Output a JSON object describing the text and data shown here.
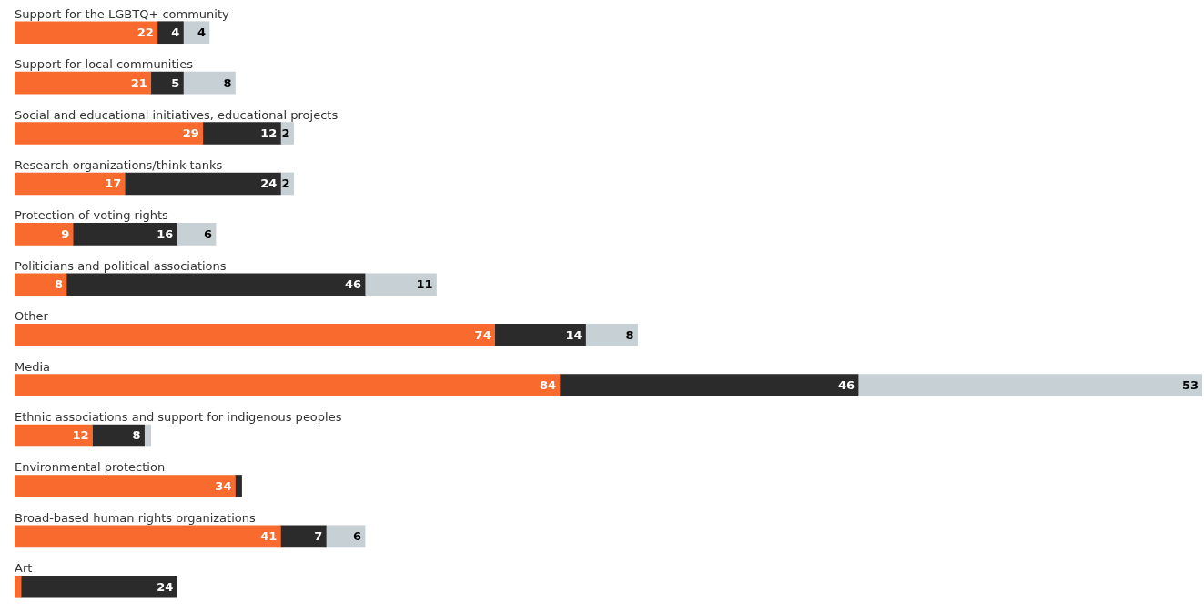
{
  "chart_data": {
    "type": "bar",
    "orientation": "horizontal",
    "stacked": true,
    "legend": false,
    "categories": [
      "Support for the LGBTQ+ community",
      "Support for local communities",
      "Social and educational initiatives, educational projects",
      "Research organizations/think tanks",
      "Protection of voting rights",
      "Politicians and political associations",
      "Other",
      "Media",
      "Ethnic associations and support for indigenous peoples",
      "Environmental protection",
      "Broad-based human rights organizations",
      "Art"
    ],
    "series": [
      {
        "color": "#f96a2f",
        "values": [
          22,
          21,
          29,
          17,
          9,
          8,
          74,
          84,
          12,
          34,
          41,
          1
        ],
        "value_labels": [
          "22",
          "21",
          "29",
          "17",
          "9",
          "8",
          "74",
          "84",
          "12",
          "34",
          "41",
          null
        ]
      },
      {
        "color": "#2b2b2b",
        "values": [
          4,
          5,
          12,
          24,
          16,
          46,
          14,
          46,
          8,
          1,
          7,
          24
        ],
        "value_labels": [
          "4",
          "5",
          "12",
          "24",
          "16",
          "46",
          "14",
          "46",
          "8",
          null,
          "7",
          "24"
        ]
      },
      {
        "color": "#c7d0d4",
        "values": [
          4,
          8,
          2,
          2,
          6,
          11,
          8,
          53,
          1,
          null,
          6,
          null
        ],
        "value_labels": [
          "4",
          "8",
          "2",
          "2",
          "6",
          "11",
          "8",
          "53",
          null,
          null,
          "6",
          null
        ]
      }
    ]
  }
}
